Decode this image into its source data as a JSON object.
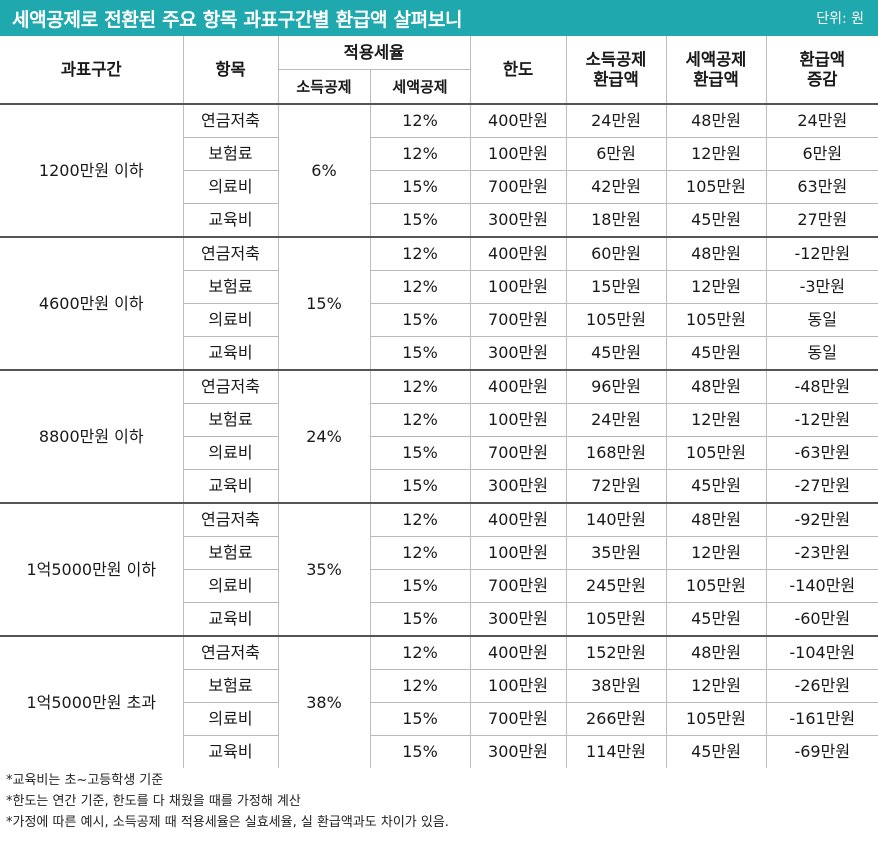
{
  "title": "세액공제로 전환된 주요 항목 과표구간별 환급액 살펴보니",
  "unit": "단위: 원",
  "header": {
    "bracket": "과표구간",
    "item": "항목",
    "rate": "적용세율",
    "rate_income": "소득공제",
    "rate_tax": "세액공제",
    "limit": "한도",
    "income_refund_l1": "소득공제",
    "income_refund_l2": "환급액",
    "tax_refund_l1": "세액공제",
    "tax_refund_l2": "환급액",
    "change_l1": "환급액",
    "change_l2": "증감"
  },
  "groups": [
    {
      "bracket": "1200만원 이하",
      "income_rate": "6%",
      "rows": [
        {
          "item": "연금저축",
          "tax_rate": "12%",
          "limit": "400만원",
          "income_refund": "24만원",
          "tax_refund": "48만원",
          "change": "24만원"
        },
        {
          "item": "보험료",
          "tax_rate": "12%",
          "limit": "100만원",
          "income_refund": "6만원",
          "tax_refund": "12만원",
          "change": "6만원"
        },
        {
          "item": "의료비",
          "tax_rate": "15%",
          "limit": "700만원",
          "income_refund": "42만원",
          "tax_refund": "105만원",
          "change": "63만원"
        },
        {
          "item": "교육비",
          "tax_rate": "15%",
          "limit": "300만원",
          "income_refund": "18만원",
          "tax_refund": "45만원",
          "change": "27만원"
        }
      ]
    },
    {
      "bracket": "4600만원 이하",
      "income_rate": "15%",
      "rows": [
        {
          "item": "연금저축",
          "tax_rate": "12%",
          "limit": "400만원",
          "income_refund": "60만원",
          "tax_refund": "48만원",
          "change": "-12만원"
        },
        {
          "item": "보험료",
          "tax_rate": "12%",
          "limit": "100만원",
          "income_refund": "15만원",
          "tax_refund": "12만원",
          "change": "-3만원"
        },
        {
          "item": "의료비",
          "tax_rate": "15%",
          "limit": "700만원",
          "income_refund": "105만원",
          "tax_refund": "105만원",
          "change": "동일"
        },
        {
          "item": "교육비",
          "tax_rate": "15%",
          "limit": "300만원",
          "income_refund": "45만원",
          "tax_refund": "45만원",
          "change": "동일"
        }
      ]
    },
    {
      "bracket": "8800만원 이하",
      "income_rate": "24%",
      "rows": [
        {
          "item": "연금저축",
          "tax_rate": "12%",
          "limit": "400만원",
          "income_refund": "96만원",
          "tax_refund": "48만원",
          "change": "-48만원"
        },
        {
          "item": "보험료",
          "tax_rate": "12%",
          "limit": "100만원",
          "income_refund": "24만원",
          "tax_refund": "12만원",
          "change": "-12만원"
        },
        {
          "item": "의료비",
          "tax_rate": "15%",
          "limit": "700만원",
          "income_refund": "168만원",
          "tax_refund": "105만원",
          "change": "-63만원"
        },
        {
          "item": "교육비",
          "tax_rate": "15%",
          "limit": "300만원",
          "income_refund": "72만원",
          "tax_refund": "45만원",
          "change": "-27만원"
        }
      ]
    },
    {
      "bracket": "1억5000만원 이하",
      "income_rate": "35%",
      "rows": [
        {
          "item": "연금저축",
          "tax_rate": "12%",
          "limit": "400만원",
          "income_refund": "140만원",
          "tax_refund": "48만원",
          "change": "-92만원"
        },
        {
          "item": "보험료",
          "tax_rate": "12%",
          "limit": "100만원",
          "income_refund": "35만원",
          "tax_refund": "12만원",
          "change": "-23만원"
        },
        {
          "item": "의료비",
          "tax_rate": "15%",
          "limit": "700만원",
          "income_refund": "245만원",
          "tax_refund": "105만원",
          "change": "-140만원"
        },
        {
          "item": "교육비",
          "tax_rate": "15%",
          "limit": "300만원",
          "income_refund": "105만원",
          "tax_refund": "45만원",
          "change": "-60만원"
        }
      ]
    },
    {
      "bracket": "1억5000만원 초과",
      "income_rate": "38%",
      "rows": [
        {
          "item": "연금저축",
          "tax_rate": "12%",
          "limit": "400만원",
          "income_refund": "152만원",
          "tax_refund": "48만원",
          "change": "-104만원"
        },
        {
          "item": "보험료",
          "tax_rate": "12%",
          "limit": "100만원",
          "income_refund": "38만원",
          "tax_refund": "12만원",
          "change": "-26만원"
        },
        {
          "item": "의료비",
          "tax_rate": "15%",
          "limit": "700만원",
          "income_refund": "266만원",
          "tax_refund": "105만원",
          "change": "-161만원"
        },
        {
          "item": "교육비",
          "tax_rate": "15%",
          "limit": "300만원",
          "income_refund": "114만원",
          "tax_refund": "45만원",
          "change": "-69만원"
        }
      ]
    }
  ],
  "notes": [
    "*교육비는 초~고등학생 기준",
    "*한도는 연간 기준, 한도를 다 채웠을 때를 가정해 계산",
    "*가정에 따른 예시, 소득공제 때 적용세율은 실효세율, 실 환급액과도 차이가 있음."
  ]
}
